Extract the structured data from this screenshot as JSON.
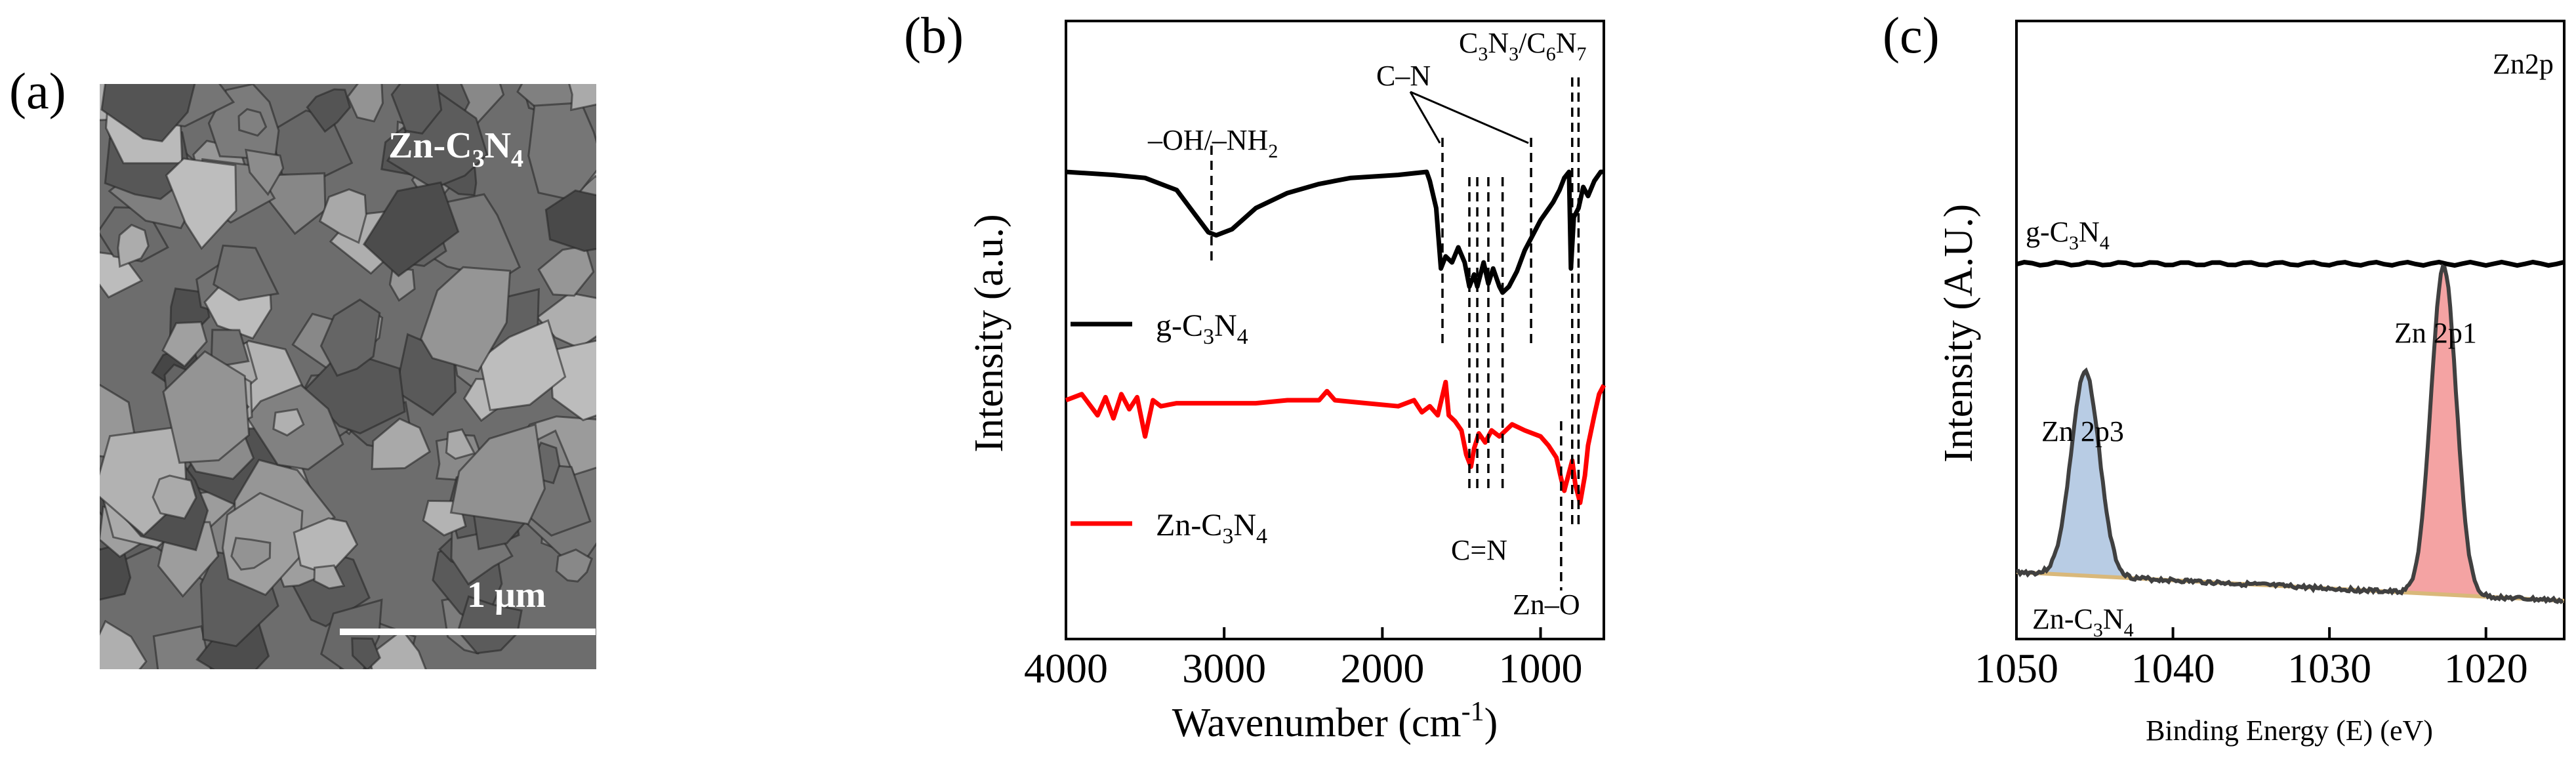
{
  "panels": [
    {
      "id": "a",
      "label": "(a)"
    },
    {
      "id": "b",
      "label": "(b)"
    },
    {
      "id": "c",
      "label": "(c)"
    }
  ],
  "sem": {
    "sample_label_main": "Zn-C",
    "sample_sub1": "3",
    "sample_mid": "N",
    "sample_sub2": "4",
    "scale_label": "1 μm",
    "scale_fraction_of_width": 0.52
  },
  "chart_data": [
    {
      "panel": "b",
      "type": "line",
      "xlabel": "Wavenumber (cm",
      "xlabel_sup": "-1",
      "xlabel_end": ")",
      "ylabel": "Intensity (a.u.)",
      "xlim": [
        4000,
        600
      ],
      "xticks": [
        4000,
        3000,
        2000,
        1000
      ],
      "xtick_labels": [
        "4000",
        "3000",
        "2000",
        "1000"
      ],
      "series": [
        {
          "name": "g-C3N4",
          "name_parts": [
            "g-C",
            "3",
            "N",
            "4"
          ],
          "color": "#000000",
          "offset": 1.0,
          "points": [
            [
              4000,
              0
            ],
            [
              3700,
              -0.01
            ],
            [
              3500,
              -0.02
            ],
            [
              3300,
              -0.06
            ],
            [
              3200,
              -0.13
            ],
            [
              3100,
              -0.2
            ],
            [
              3050,
              -0.21
            ],
            [
              2950,
              -0.19
            ],
            [
              2800,
              -0.12
            ],
            [
              2600,
              -0.07
            ],
            [
              2400,
              -0.04
            ],
            [
              2200,
              -0.02
            ],
            [
              1900,
              -0.01
            ],
            [
              1720,
              0
            ],
            [
              1700,
              -0.03
            ],
            [
              1660,
              -0.12
            ],
            [
              1630,
              -0.32
            ],
            [
              1600,
              -0.28
            ],
            [
              1560,
              -0.3
            ],
            [
              1520,
              -0.25
            ],
            [
              1480,
              -0.3
            ],
            [
              1450,
              -0.38
            ],
            [
              1420,
              -0.34
            ],
            [
              1400,
              -0.38
            ],
            [
              1360,
              -0.3
            ],
            [
              1330,
              -0.37
            ],
            [
              1300,
              -0.32
            ],
            [
              1260,
              -0.38
            ],
            [
              1240,
              -0.4
            ],
            [
              1200,
              -0.38
            ],
            [
              1150,
              -0.33
            ],
            [
              1100,
              -0.26
            ],
            [
              1050,
              -0.21
            ],
            [
              1000,
              -0.16
            ],
            [
              960,
              -0.13
            ],
            [
              920,
              -0.1
            ],
            [
              880,
              -0.06
            ],
            [
              850,
              -0.02
            ],
            [
              820,
              -0.0
            ],
            [
              808,
              -0.32
            ],
            [
              790,
              -0.15
            ],
            [
              760,
              -0.12
            ],
            [
              730,
              -0.05
            ],
            [
              700,
              -0.08
            ],
            [
              660,
              -0.03
            ],
            [
              620,
              0.0
            ],
            [
              600,
              0.0
            ]
          ]
        },
        {
          "name": "Zn-C3N4",
          "name_parts": [
            "Zn-C",
            "3",
            "N",
            "4"
          ],
          "color": "#ff0000",
          "offset": 0.0,
          "points": [
            [
              4000,
              0
            ],
            [
              3900,
              0.02
            ],
            [
              3800,
              -0.05
            ],
            [
              3750,
              0.01
            ],
            [
              3700,
              -0.06
            ],
            [
              3650,
              0.02
            ],
            [
              3600,
              -0.03
            ],
            [
              3550,
              0.01
            ],
            [
              3500,
              -0.12
            ],
            [
              3450,
              0.0
            ],
            [
              3400,
              -0.02
            ],
            [
              3300,
              -0.01
            ],
            [
              3200,
              -0.01
            ],
            [
              3000,
              -0.01
            ],
            [
              2800,
              -0.01
            ],
            [
              2600,
              0.0
            ],
            [
              2400,
              0.0
            ],
            [
              2350,
              0.03
            ],
            [
              2300,
              0.0
            ],
            [
              2100,
              -0.01
            ],
            [
              1900,
              -0.02
            ],
            [
              1800,
              0.0
            ],
            [
              1750,
              -0.04
            ],
            [
              1700,
              -0.02
            ],
            [
              1650,
              -0.05
            ],
            [
              1600,
              0.06
            ],
            [
              1580,
              -0.05
            ],
            [
              1540,
              -0.07
            ],
            [
              1500,
              -0.1
            ],
            [
              1470,
              -0.18
            ],
            [
              1440,
              -0.22
            ],
            [
              1420,
              -0.16
            ],
            [
              1390,
              -0.11
            ],
            [
              1350,
              -0.14
            ],
            [
              1310,
              -0.1
            ],
            [
              1260,
              -0.12
            ],
            [
              1220,
              -0.1
            ],
            [
              1180,
              -0.08
            ],
            [
              1100,
              -0.1
            ],
            [
              1000,
              -0.12
            ],
            [
              950,
              -0.15
            ],
            [
              900,
              -0.19
            ],
            [
              870,
              -0.26
            ],
            [
              850,
              -0.3
            ],
            [
              820,
              -0.24
            ],
            [
              800,
              -0.2
            ],
            [
              780,
              -0.28
            ],
            [
              750,
              -0.34
            ],
            [
              720,
              -0.25
            ],
            [
              700,
              -0.15
            ],
            [
              660,
              -0.05
            ],
            [
              630,
              0.02
            ],
            [
              600,
              0.05
            ]
          ]
        }
      ],
      "annotations": [
        {
          "text": "–OH/–NH",
          "sub": "2",
          "x": 3080
        },
        {
          "text": "C–N",
          "x": 1620
        },
        {
          "text": "C",
          "sub": "3",
          "mid": "N",
          "sub2": "3",
          "tail": "/C",
          "sub3": "6",
          "mid2": "N",
          "sub4": "7",
          "x": 800
        },
        {
          "text": "C=N",
          "x": 1310
        },
        {
          "text": "Zn–O",
          "x": 870
        }
      ],
      "legend_position": "left"
    },
    {
      "panel": "c",
      "type": "area",
      "title": "Zn2p",
      "xlabel": "Binding Energy (E) (eV)",
      "ylabel": "Intensity (A.U.)",
      "xlim": [
        1050,
        1015
      ],
      "xticks": [
        1050,
        1040,
        1030,
        1020
      ],
      "xtick_labels": [
        "1050",
        "1040",
        "1030",
        "1020"
      ],
      "series": [
        {
          "name": "g-C3N4",
          "name_parts": [
            "g-C",
            "3",
            "N",
            "4"
          ],
          "color": "#000000",
          "level": 0.65
        },
        {
          "name": "Zn-C3N4",
          "name_parts": [
            "Zn-C",
            "3",
            "N",
            "4"
          ],
          "color": "#404040"
        }
      ],
      "peaks": [
        {
          "label": "Zn 2p3",
          "center": 1045.6,
          "height": 0.62,
          "width": 0.9,
          "fill": "#b8cce4"
        },
        {
          "label": "Zn 2p1",
          "center": 1022.7,
          "height": 1.0,
          "width": 0.8,
          "fill": "#f4a3a3"
        }
      ],
      "background_color": "#d9b87a",
      "background_color_right": "#f0a040"
    }
  ]
}
